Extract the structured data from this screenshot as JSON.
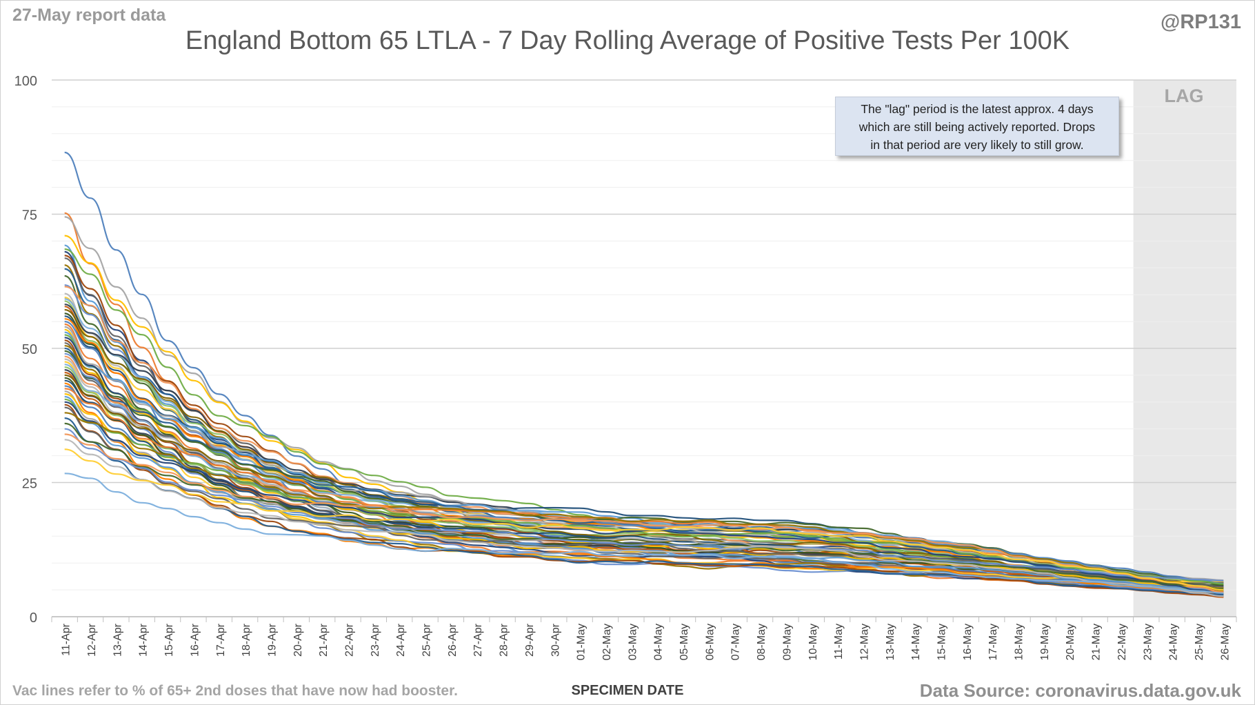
{
  "header": {
    "report_date": "27-May report data",
    "handle": "@RP131"
  },
  "footer": {
    "footnote": "Vac lines refer to % of 65+ 2nd doses that have now had booster.",
    "source": "Data Source: coronavirus.data.gov.uk"
  },
  "annotation": {
    "lag_label": "LAG",
    "note_lines": [
      "The \"lag\" period is the latest approx. 4 days",
      "which are still being actively reported.  Drops",
      "in that period are very likely to still grow."
    ]
  },
  "colors": {
    "lag_shade": "#e8e8e8",
    "gridline": "#d9d9d9",
    "note_box": "#dce4f1",
    "palette": [
      "#4f81bd",
      "#ed7d31",
      "#a5a5a5",
      "#ffc000",
      "#5b9bd5",
      "#70ad47",
      "#264478",
      "#9e480e",
      "#636363",
      "#997300",
      "#255e91",
      "#43682b",
      "#698ed0",
      "#f1975a",
      "#b7b7b7",
      "#ffcd33",
      "#7cafdd",
      "#8cc168",
      "#333f50",
      "#c55a11",
      "#7f6000",
      "#375623",
      "#1f4e79",
      "#ff7f00"
    ]
  },
  "chart_data": {
    "type": "line",
    "title": "England Bottom 65 LTLA - 7 Day Rolling Average of Positive Tests Per 100K",
    "xlabel": "SPECIMEN DATE",
    "ylabel": "",
    "ylim": [
      0,
      100
    ],
    "yticks": [
      0,
      25,
      50,
      75,
      100
    ],
    "grid": true,
    "legend": "none",
    "lag_period": [
      "23-May",
      "26-May"
    ],
    "categories": [
      "11-Apr",
      "12-Apr",
      "13-Apr",
      "14-Apr",
      "15-Apr",
      "16-Apr",
      "17-Apr",
      "18-Apr",
      "19-Apr",
      "20-Apr",
      "21-Apr",
      "22-Apr",
      "23-Apr",
      "24-Apr",
      "25-Apr",
      "26-Apr",
      "27-Apr",
      "28-Apr",
      "29-Apr",
      "30-Apr",
      "01-May",
      "02-May",
      "03-May",
      "04-May",
      "05-May",
      "06-May",
      "07-May",
      "08-May",
      "09-May",
      "10-May",
      "11-May",
      "12-May",
      "13-May",
      "14-May",
      "15-May",
      "16-May",
      "17-May",
      "18-May",
      "19-May",
      "20-May",
      "21-May",
      "22-May",
      "23-May",
      "24-May",
      "25-May",
      "26-May"
    ],
    "series_count": 65,
    "series_start_values": [
      86.5,
      75.2,
      74.5,
      71,
      69.2,
      68.5,
      68,
      67.3,
      66.8,
      65.5,
      64.8,
      63.5,
      61.8,
      61.5,
      60.2,
      59.5,
      59.2,
      58.8,
      58.2,
      57.8,
      57.2,
      56.5,
      56,
      55.5,
      55,
      54.5,
      54,
      53.5,
      53,
      52.5,
      52,
      51.5,
      51,
      50.5,
      50,
      49.5,
      49,
      48.5,
      48,
      47.5,
      47,
      46.5,
      46,
      45.5,
      45,
      44.5,
      44,
      43.5,
      43,
      42.5,
      42,
      41.5,
      41,
      40.5,
      40,
      39.5,
      39,
      38,
      37,
      36,
      35,
      34,
      33,
      31.2,
      26.7
    ],
    "series_end_values": [
      5.5,
      6.5,
      6.8,
      6.2,
      5.8,
      5.4,
      4.9,
      5.2,
      4.4,
      4.7,
      5.1,
      4.2,
      3.9,
      4.8,
      5.6,
      6.1,
      4.5,
      3.8,
      5.3,
      4.1,
      6.4,
      5,
      4.6,
      3.7,
      5.7,
      4.3,
      6,
      5.2,
      4.9,
      4.4,
      3.9,
      5.5,
      6.3,
      4.8,
      4.1,
      5.9,
      4.6,
      3.6,
      5.1,
      6.6,
      4.4,
      4,
      5.4,
      4.7,
      3.8,
      5.8,
      5,
      4.2,
      6.2,
      4.5,
      3.9,
      5.3,
      4.9,
      6.1,
      4.3,
      3.7,
      5.6,
      4.8,
      4.1,
      5.2,
      6.7,
      4.6,
      3.8,
      5,
      4.4
    ]
  }
}
